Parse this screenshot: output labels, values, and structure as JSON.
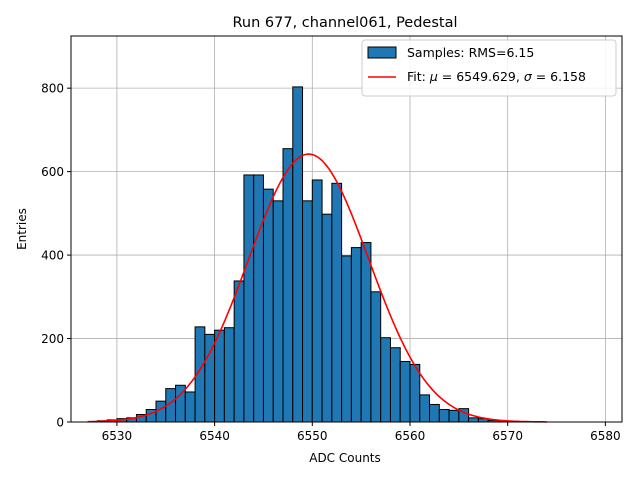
{
  "chart_data": {
    "type": "bar",
    "title": "Run 677, channel061, Pedestal",
    "xlabel": "ADC Counts",
    "ylabel": "Entries",
    "xlim": [
      6525.3,
      6581.7
    ],
    "ylim": [
      0,
      925
    ],
    "grid": true,
    "legend_position": "top-right",
    "x_ticks": [
      6530,
      6540,
      6550,
      6560,
      6570,
      6580
    ],
    "y_ticks": [
      0,
      200,
      400,
      600,
      800
    ],
    "bins": {
      "start": 6528,
      "width": 1,
      "counts": [
        3,
        5,
        8,
        10,
        18,
        30,
        50,
        80,
        88,
        72,
        228,
        210,
        220,
        226,
        338,
        592,
        592,
        558,
        530,
        655,
        803,
        530,
        580,
        498,
        572,
        398,
        418,
        430,
        312,
        202,
        178,
        145,
        138,
        65,
        42,
        30,
        28,
        32,
        10,
        8,
        4,
        3,
        2
      ]
    },
    "series": [
      {
        "name": "Samples: RMS=6.15",
        "type": "histogram",
        "color": "#1f77b4",
        "edge_color": "#000000"
      },
      {
        "name": "Fit: μ = 6549.629, σ = 6.158",
        "type": "gaussian",
        "mu": 6549.629,
        "sigma": 6.158,
        "amplitude": 642,
        "x_range": [
          6527.0,
          6574.0
        ],
        "color": "#ff0000"
      }
    ],
    "legend": [
      {
        "label_text": "Samples: RMS=6.15"
      },
      {
        "label_pre": "Fit: ",
        "mu_symbol": "μ",
        "mu_value": " = 6549.629, ",
        "sigma_symbol": "σ",
        "sigma_value": " = 6.158"
      }
    ]
  }
}
